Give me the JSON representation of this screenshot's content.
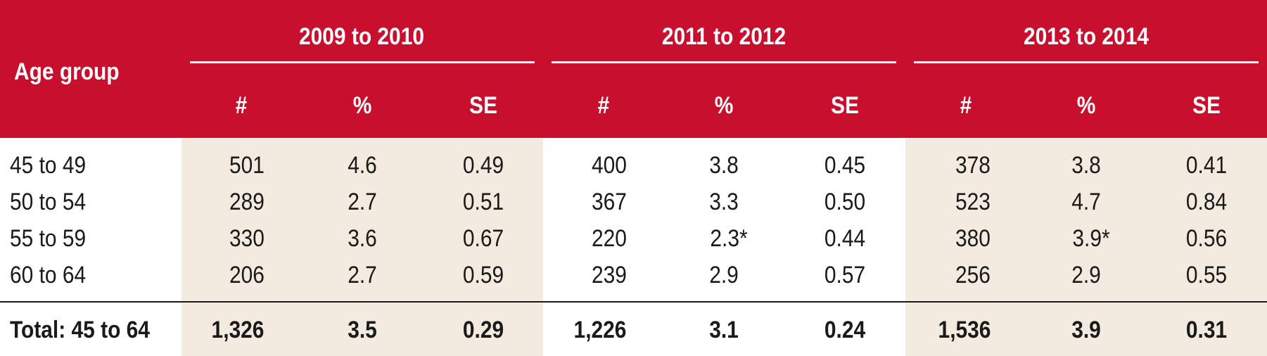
{
  "header": {
    "age_group": "Age group",
    "periods": [
      "2009 to 2010",
      "2011 to 2012",
      "2013 to 2014"
    ],
    "columns": [
      "#",
      "%",
      "SE"
    ]
  },
  "rows": [
    {
      "label": "45 to 49",
      "values": [
        "501",
        "4.6",
        "0.49",
        "400",
        "3.8",
        "0.45",
        "378",
        "3.8",
        "0.41"
      ]
    },
    {
      "label": "50 to 54",
      "values": [
        "289",
        "2.7",
        "0.51",
        "367",
        "3.3",
        "0.50",
        "523",
        "4.7",
        "0.84"
      ]
    },
    {
      "label": "55 to 59",
      "values": [
        "330",
        "3.6",
        "0.67",
        "220",
        "2.3*",
        "0.44",
        "380",
        "3.9*",
        "0.56"
      ]
    },
    {
      "label": "60 to 64",
      "values": [
        "206",
        "2.7",
        "0.59",
        "239",
        "2.9",
        "0.57",
        "256",
        "2.9",
        "0.55"
      ]
    }
  ],
  "total": {
    "label": "Total: 45 to 64",
    "values": [
      "1,326",
      "3.5",
      "0.29",
      "1,226",
      "3.1",
      "0.24",
      "1,536",
      "3.9",
      "0.31"
    ]
  },
  "colors": {
    "header_bg": "#c8102e",
    "band_bg": "#f3ebdf",
    "text": "#1a1a1a"
  }
}
